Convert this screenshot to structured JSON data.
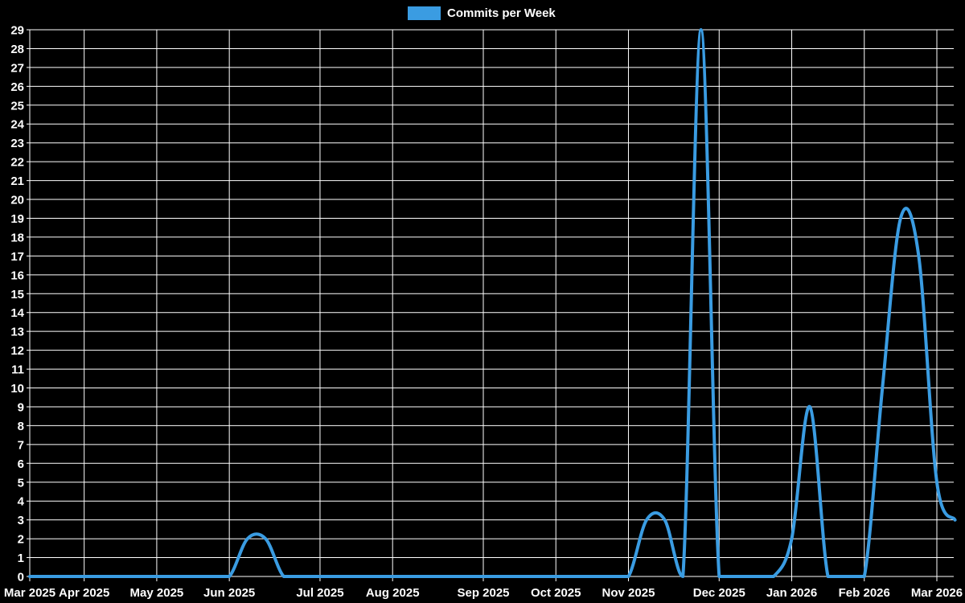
{
  "title": "Commits per Week",
  "colors": {
    "background": "#000000",
    "grid": "#ffffff",
    "text": "#ffffff",
    "line": "#3a9ce2"
  },
  "legend": {
    "position": "top",
    "items": [
      {
        "label": "Commits per Week",
        "color": "#3a9ce2"
      }
    ]
  },
  "chart_data": {
    "type": "line",
    "title": "Commits per Week",
    "legend_position": "top",
    "grid": true,
    "smoothing": "bezier",
    "x_axis": {
      "unit": "week",
      "tick_labels": [
        "Mar 2025",
        "Apr 2025",
        "May 2025",
        "Jun 2025",
        "Jul 2025",
        "Aug 2025",
        "Sep 2025",
        "Oct 2025",
        "Nov 2025",
        "Dec 2025",
        "Jan 2026",
        "Feb 2026",
        "Mar 2026"
      ],
      "tick_week_indices": [
        0,
        3,
        7,
        11,
        16,
        20,
        25,
        29,
        33,
        38,
        42,
        46,
        50
      ]
    },
    "y_axis": {
      "min": 0,
      "max": 29,
      "tick_step": 1,
      "tick_labels": [
        "0",
        "1",
        "2",
        "3",
        "4",
        "5",
        "6",
        "7",
        "8",
        "9",
        "10",
        "11",
        "12",
        "13",
        "14",
        "15",
        "16",
        "17",
        "18",
        "19",
        "20",
        "21",
        "22",
        "23",
        "24",
        "25",
        "26",
        "27",
        "28",
        "29"
      ]
    },
    "series": [
      {
        "name": "Commits per Week",
        "color": "#3a9ce2",
        "values": [
          0,
          0,
          0,
          0,
          0,
          0,
          0,
          0,
          0,
          0,
          0,
          0,
          2,
          2,
          0,
          0,
          0,
          0,
          0,
          0,
          0,
          0,
          0,
          0,
          0,
          0,
          0,
          0,
          0,
          0,
          0,
          0,
          0,
          0,
          3,
          3,
          0,
          29,
          0,
          0,
          0,
          0,
          2,
          9,
          0,
          0,
          0,
          10,
          19,
          17,
          5,
          3
        ]
      }
    ]
  }
}
